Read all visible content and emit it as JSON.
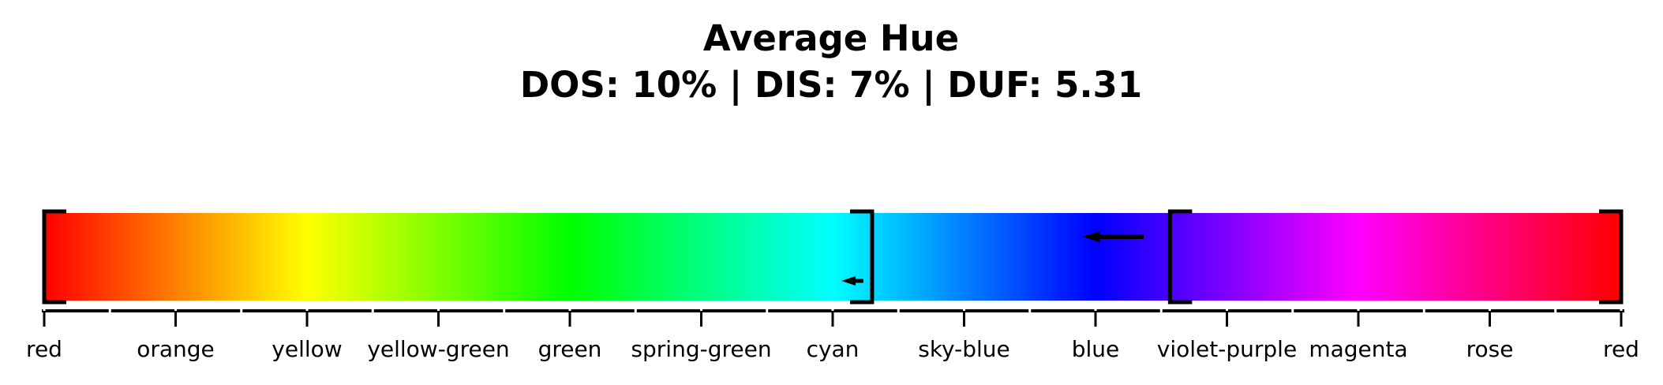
{
  "chart_data": {
    "type": "hue-bar",
    "title": "Average Hue",
    "subtitle": "DOS: 10% | DIS: 7% | DUF: 5.31",
    "xlim": [
      0,
      360
    ],
    "major_ticks": [
      {
        "value": 0,
        "label": "red"
      },
      {
        "value": 30,
        "label": "orange"
      },
      {
        "value": 60,
        "label": "yellow"
      },
      {
        "value": 90,
        "label": "yellow-green"
      },
      {
        "value": 120,
        "label": "green"
      },
      {
        "value": 150,
        "label": "spring-green"
      },
      {
        "value": 180,
        "label": "cyan"
      },
      {
        "value": 210,
        "label": "sky-blue"
      },
      {
        "value": 240,
        "label": "blue"
      },
      {
        "value": 270,
        "label": "violet-purple"
      },
      {
        "value": 300,
        "label": "magenta"
      },
      {
        "value": 330,
        "label": "rose"
      },
      {
        "value": 360,
        "label": "red"
      }
    ],
    "minor_tick_step": 15,
    "brackets": [
      {
        "value": 0,
        "side": "left"
      },
      {
        "value": 189,
        "side": "right"
      },
      {
        "value": 257,
        "side": "left"
      },
      {
        "value": 360,
        "side": "right"
      }
    ],
    "arrows": [
      {
        "from": 187,
        "to": 182,
        "level": "low"
      },
      {
        "from": 251,
        "to": 237,
        "level": "high"
      }
    ]
  }
}
